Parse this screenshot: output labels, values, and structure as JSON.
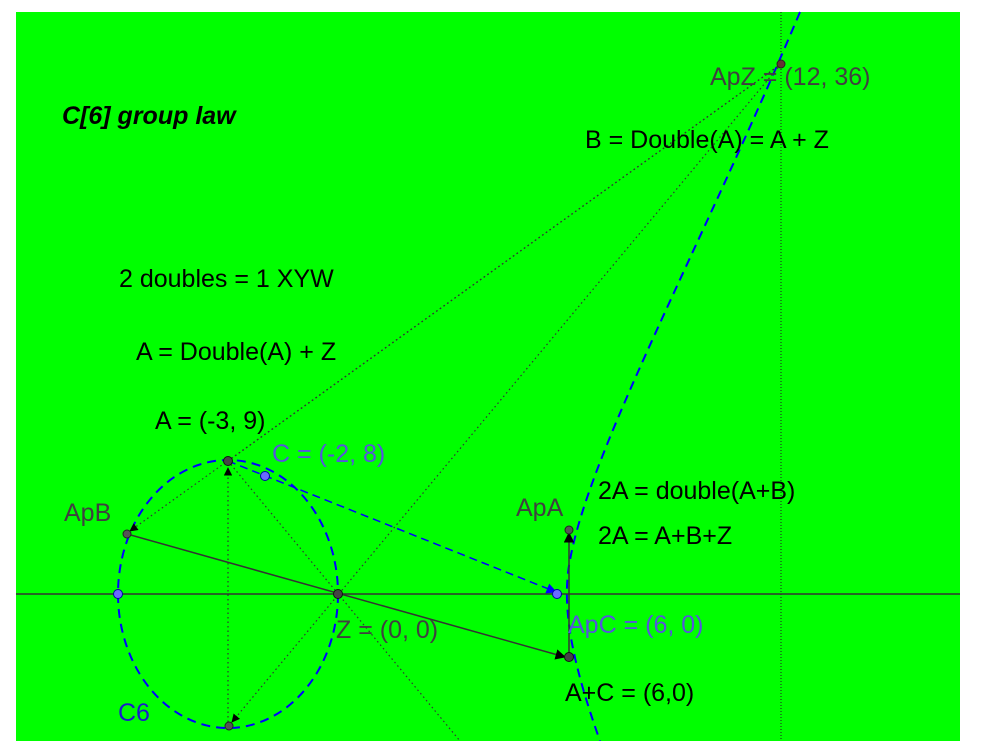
{
  "title": "C[6] group law",
  "colors": {
    "background": "#00ff00",
    "page": "#ffffff",
    "curve": "#0000ff",
    "point_label_blue": "#5555dd",
    "point_label_gray": "#404040",
    "text": "#000000",
    "curve_label": "#1a1acc"
  },
  "texts": {
    "doubles": "2 doubles =  1 XYW",
    "a_double": "A = Double(A) + Z",
    "b_double": "B = Double(A) = A + Z",
    "twoA_1": "2A = double(A+B)",
    "twoA_2": "2A = A+B+Z",
    "a_plus_c": "A+C = (6,0)"
  },
  "points": {
    "A": {
      "label": "A = (-3, 9)",
      "x": -3,
      "y": 9
    },
    "C": {
      "label": "C = (-2, 8)",
      "x": -2,
      "y": 8
    },
    "Z": {
      "label": "Z = (0, 0)",
      "x": 0,
      "y": 0
    },
    "ApZ": {
      "label": "ApZ = (12, 36)",
      "x": 12,
      "y": 36
    },
    "ApC": {
      "label": "ApC = (6, 0)",
      "x": 6,
      "y": 0
    },
    "ApB": {
      "label": "ApB"
    },
    "ApA": {
      "label": "ApA"
    }
  },
  "curve_label": "C6"
}
